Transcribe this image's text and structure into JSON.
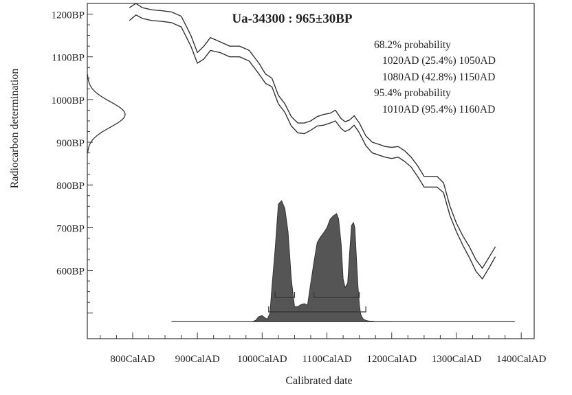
{
  "chart_data": {
    "type": "line",
    "title": "Ua-34300 : 965±30BP",
    "xlabel": "Calibrated date",
    "ylabel": "Radiocarbon determination",
    "xlim": [
      730,
      1420
    ],
    "ylim": [
      440,
      1225
    ],
    "x_ticks": [
      {
        "value": 800,
        "label": "800CalAD"
      },
      {
        "value": 900,
        "label": "900CalAD"
      },
      {
        "value": 1000,
        "label": "1000CalAD"
      },
      {
        "value": 1100,
        "label": "1100CalAD"
      },
      {
        "value": 1200,
        "label": "1200CalAD"
      },
      {
        "value": 1300,
        "label": "1300CalAD"
      },
      {
        "value": 1400,
        "label": "1400CalAD"
      }
    ],
    "y_ticks": [
      {
        "value": 1200,
        "label": "1200BP"
      },
      {
        "value": 1100,
        "label": "1100BP"
      },
      {
        "value": 1000,
        "label": "1000BP"
      },
      {
        "value": 900,
        "label": "900BP"
      },
      {
        "value": 800,
        "label": "800BP"
      },
      {
        "value": 700,
        "label": "700BP"
      },
      {
        "value": 600,
        "label": "600BP"
      }
    ],
    "annotations": [
      "68.2% probability",
      "1020AD (25.4%) 1050AD",
      "1080AD (42.8%) 1150AD",
      "95.4% probability",
      "1010AD (95.4%) 1160AD"
    ],
    "calibration_curve": {
      "x": [
        795,
        805,
        815,
        830,
        845,
        860,
        875,
        890,
        900,
        910,
        920,
        935,
        950,
        965,
        980,
        995,
        1005,
        1015,
        1025,
        1035,
        1045,
        1055,
        1065,
        1075,
        1085,
        1095,
        1105,
        1113,
        1122,
        1128,
        1135,
        1142,
        1150,
        1160,
        1170,
        1180,
        1190,
        1200,
        1210,
        1220,
        1230,
        1240,
        1250,
        1260,
        1270,
        1280,
        1290,
        1300,
        1310,
        1320,
        1330,
        1340,
        1350,
        1360
      ],
      "upper": [
        1215,
        1228,
        1215,
        1210,
        1208,
        1205,
        1195,
        1150,
        1110,
        1125,
        1145,
        1135,
        1125,
        1125,
        1115,
        1085,
        1060,
        1050,
        1010,
        990,
        960,
        945,
        945,
        950,
        960,
        965,
        968,
        975,
        955,
        948,
        952,
        962,
        945,
        915,
        900,
        895,
        890,
        888,
        890,
        880,
        865,
        845,
        820,
        820,
        820,
        805,
        750,
        710,
        680,
        655,
        625,
        605,
        630,
        655
      ],
      "lower": [
        1185,
        1198,
        1190,
        1185,
        1183,
        1180,
        1170,
        1125,
        1085,
        1095,
        1115,
        1110,
        1100,
        1100,
        1090,
        1060,
        1038,
        1030,
        990,
        970,
        938,
        922,
        920,
        928,
        938,
        940,
        945,
        950,
        932,
        925,
        930,
        940,
        922,
        892,
        875,
        870,
        865,
        862,
        865,
        855,
        842,
        820,
        795,
        795,
        795,
        782,
        728,
        690,
        658,
        630,
        598,
        580,
        605,
        632
      ]
    },
    "radiocarbon_distribution": {
      "mean": 965,
      "sigma": 30,
      "range": [
        875,
        1060
      ]
    },
    "calibrated_distribution": {
      "baseline": 480,
      "x": [
        985,
        990,
        995,
        1000,
        1005,
        1008,
        1012,
        1015,
        1020,
        1025,
        1030,
        1035,
        1040,
        1045,
        1050,
        1055,
        1060,
        1065,
        1070,
        1075,
        1080,
        1085,
        1090,
        1095,
        1100,
        1105,
        1110,
        1115,
        1118,
        1122,
        1125,
        1128,
        1132,
        1135,
        1138,
        1141,
        1143,
        1146,
        1148,
        1150,
        1152,
        1155,
        1158,
        1162,
        1166,
        1170,
        1175,
        1180,
        1190,
        1200
      ],
      "y": [
        480,
        483,
        492,
        494,
        488,
        486,
        500,
        560,
        650,
        755,
        763,
        745,
        690,
        580,
        515,
        515,
        520,
        522,
        518,
        570,
        620,
        665,
        678,
        688,
        700,
        720,
        728,
        733,
        720,
        660,
        580,
        560,
        570,
        640,
        705,
        712,
        700,
        615,
        560,
        520,
        498,
        488,
        484,
        482,
        481,
        481,
        480,
        480,
        480,
        480
      ]
    },
    "baseline_range": [
      860,
      1390
    ],
    "ranges_68": [
      [
        1020,
        1050
      ],
      [
        1080,
        1150
      ]
    ],
    "ranges_95": [
      [
        1010,
        1160
      ]
    ]
  }
}
